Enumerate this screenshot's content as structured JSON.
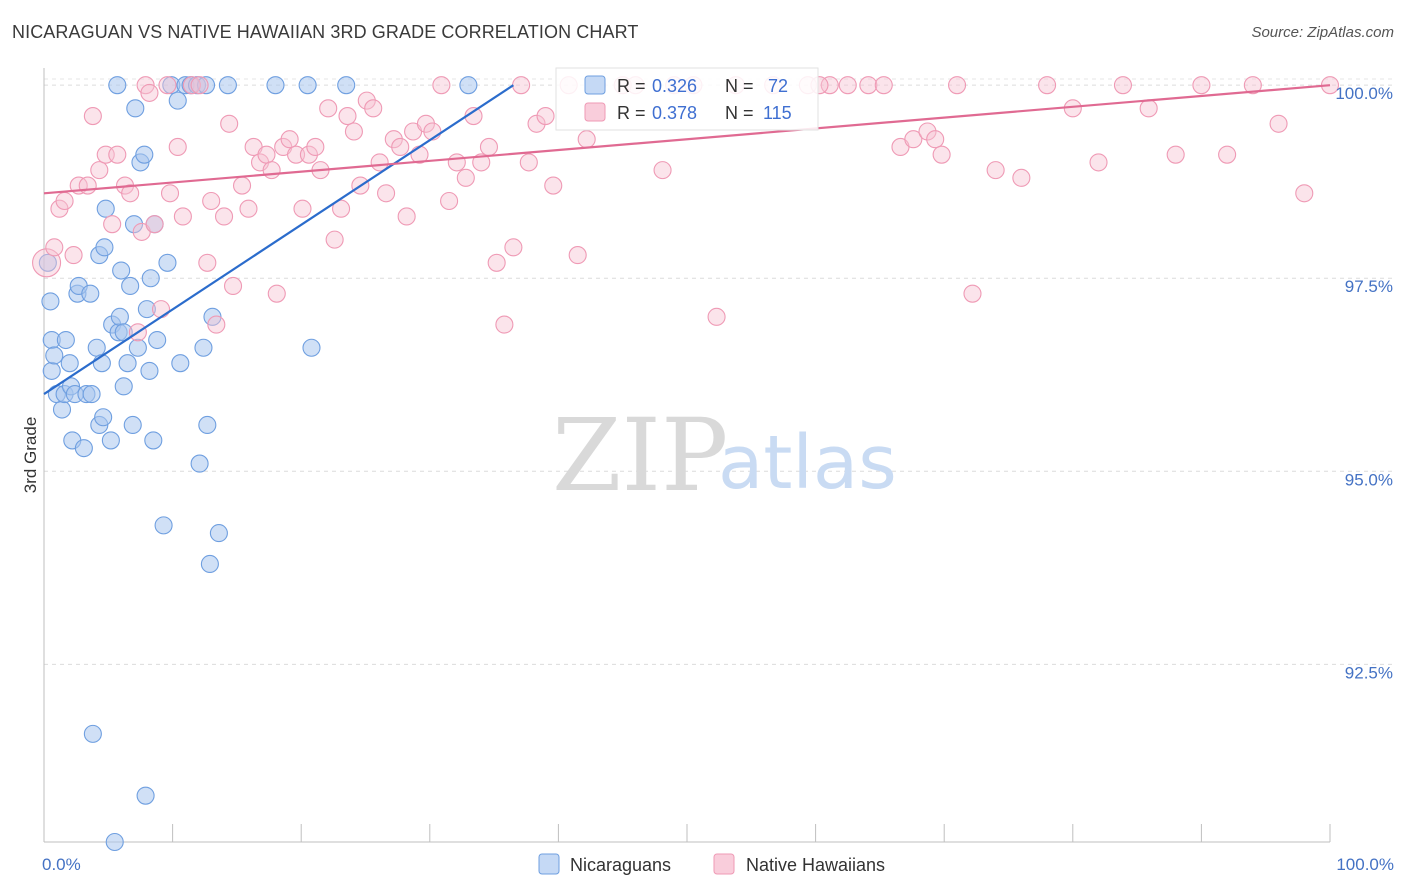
{
  "title": "NICARAGUAN VS NATIVE HAWAIIAN 3RD GRADE CORRELATION CHART",
  "source": "Source: ZipAtlas.com",
  "watermark": {
    "zip": "ZIP",
    "atlas": "atlas"
  },
  "colors": {
    "blue": "#6f9fe0",
    "blue_line": "#2b6ccc",
    "pink": "#ef9ab5",
    "pink_line": "#e06a92",
    "label": "#4472c4"
  },
  "chart_data": {
    "type": "scatter",
    "title": "NICARAGUAN VS NATIVE HAWAIIAN 3RD GRADE CORRELATION CHART",
    "xlabel": "",
    "ylabel": "3rd Grade",
    "xlim": [
      0,
      100
    ],
    "ylim": [
      90.2,
      100.3
    ],
    "x_tick_labels": [
      {
        "value": 0,
        "label": "0.0%"
      },
      {
        "value": 100,
        "label": "100.0%"
      }
    ],
    "y_ticks": [
      {
        "value": 100,
        "label": "100.0%"
      },
      {
        "value": 97.5,
        "label": "97.5%"
      },
      {
        "value": 95,
        "label": "95.0%"
      },
      {
        "value": 92.5,
        "label": "92.5%"
      }
    ],
    "legend_stats": [
      {
        "r_label": "R = ",
        "r": "0.326",
        "n_label": "N = ",
        "n": "72"
      },
      {
        "r_label": "R = ",
        "r": "0.378",
        "n_label": "N = ",
        "n": "115"
      }
    ],
    "series": [
      {
        "name": "Nicaraguans",
        "color": "#6f9fe0",
        "trend": {
          "x": [
            0,
            36.5
          ],
          "y": [
            96.0,
            100.0
          ]
        },
        "points": [
          [
            0.3,
            97.7
          ],
          [
            0.5,
            97.2
          ],
          [
            0.6,
            96.3
          ],
          [
            0.6,
            96.7
          ],
          [
            0.8,
            96.5
          ],
          [
            1.0,
            96.0
          ],
          [
            1.4,
            95.8
          ],
          [
            1.6,
            96.0
          ],
          [
            1.7,
            96.7
          ],
          [
            2.0,
            96.4
          ],
          [
            2.1,
            96.1
          ],
          [
            2.2,
            95.4
          ],
          [
            2.4,
            96.0
          ],
          [
            2.6,
            97.3
          ],
          [
            2.7,
            97.4
          ],
          [
            3.1,
            95.3
          ],
          [
            3.3,
            96.0
          ],
          [
            3.6,
            97.3
          ],
          [
            3.7,
            96.0
          ],
          [
            3.8,
            91.6
          ],
          [
            4.1,
            96.6
          ],
          [
            4.3,
            97.8
          ],
          [
            4.3,
            95.6
          ],
          [
            4.5,
            96.4
          ],
          [
            4.6,
            95.7
          ],
          [
            4.7,
            97.9
          ],
          [
            4.8,
            98.4
          ],
          [
            5.2,
            95.4
          ],
          [
            5.3,
            96.9
          ],
          [
            5.5,
            90.2
          ],
          [
            5.8,
            96.8
          ],
          [
            5.9,
            97.0
          ],
          [
            6.0,
            97.6
          ],
          [
            6.2,
            96.1
          ],
          [
            6.2,
            96.8
          ],
          [
            6.5,
            96.4
          ],
          [
            6.7,
            97.4
          ],
          [
            6.9,
            95.6
          ],
          [
            7.0,
            98.2
          ],
          [
            7.1,
            99.7
          ],
          [
            7.3,
            96.6
          ],
          [
            7.5,
            99.0
          ],
          [
            7.8,
            99.1
          ],
          [
            7.9,
            90.8
          ],
          [
            8.0,
            97.1
          ],
          [
            8.2,
            96.3
          ],
          [
            8.3,
            97.5
          ],
          [
            8.5,
            95.4
          ],
          [
            8.6,
            98.2
          ],
          [
            8.8,
            96.7
          ],
          [
            9.3,
            94.3
          ],
          [
            9.6,
            97.7
          ],
          [
            9.9,
            100.0
          ],
          [
            10.4,
            99.8
          ],
          [
            10.6,
            96.4
          ],
          [
            11.0,
            100.0
          ],
          [
            11.4,
            100.0
          ],
          [
            11.9,
            100.0
          ],
          [
            12.1,
            95.1
          ],
          [
            12.4,
            96.6
          ],
          [
            12.6,
            100.0
          ],
          [
            12.7,
            95.6
          ],
          [
            12.9,
            93.8
          ],
          [
            13.1,
            97.0
          ],
          [
            13.6,
            94.2
          ],
          [
            14.3,
            100.0
          ],
          [
            5.7,
            100.0
          ],
          [
            18.0,
            100.0
          ],
          [
            20.5,
            100.0
          ],
          [
            20.8,
            96.6
          ],
          [
            23.5,
            100.0
          ],
          [
            33.0,
            100.0
          ]
        ]
      },
      {
        "name": "Native Hawaiians",
        "color": "#ef9ab5",
        "trend": {
          "x": [
            0,
            100
          ],
          "y": [
            98.6,
            100.0
          ]
        },
        "points": [
          [
            0.2,
            97.7
          ],
          [
            0.8,
            97.9
          ],
          [
            1.2,
            98.4
          ],
          [
            1.6,
            98.5
          ],
          [
            2.3,
            97.8
          ],
          [
            2.7,
            98.7
          ],
          [
            3.4,
            98.7
          ],
          [
            3.8,
            99.6
          ],
          [
            4.3,
            98.9
          ],
          [
            4.8,
            99.1
          ],
          [
            5.3,
            98.2
          ],
          [
            5.7,
            99.1
          ],
          [
            6.3,
            98.7
          ],
          [
            6.7,
            98.6
          ],
          [
            7.3,
            96.8
          ],
          [
            7.6,
            98.1
          ],
          [
            7.9,
            100.0
          ],
          [
            8.2,
            99.9
          ],
          [
            8.6,
            98.2
          ],
          [
            9.1,
            97.1
          ],
          [
            9.6,
            100.0
          ],
          [
            9.8,
            98.6
          ],
          [
            10.4,
            99.2
          ],
          [
            10.8,
            98.3
          ],
          [
            11.5,
            100.0
          ],
          [
            12.1,
            100.0
          ],
          [
            12.7,
            97.7
          ],
          [
            13.0,
            98.5
          ],
          [
            13.4,
            96.9
          ],
          [
            14.0,
            98.3
          ],
          [
            14.4,
            99.5
          ],
          [
            14.7,
            97.4
          ],
          [
            15.4,
            98.7
          ],
          [
            15.9,
            98.4
          ],
          [
            16.3,
            99.2
          ],
          [
            16.8,
            99.0
          ],
          [
            17.3,
            99.1
          ],
          [
            17.7,
            98.9
          ],
          [
            18.1,
            97.3
          ],
          [
            18.6,
            99.2
          ],
          [
            19.1,
            99.3
          ],
          [
            19.6,
            99.1
          ],
          [
            20.1,
            98.4
          ],
          [
            20.6,
            99.1
          ],
          [
            21.1,
            99.2
          ],
          [
            21.5,
            98.9
          ],
          [
            22.1,
            99.7
          ],
          [
            22.6,
            98.0
          ],
          [
            23.1,
            98.4
          ],
          [
            23.6,
            99.6
          ],
          [
            24.1,
            99.4
          ],
          [
            24.6,
            98.7
          ],
          [
            25.1,
            99.8
          ],
          [
            25.6,
            99.7
          ],
          [
            26.1,
            99.0
          ],
          [
            26.6,
            98.6
          ],
          [
            27.2,
            99.3
          ],
          [
            27.7,
            99.2
          ],
          [
            28.2,
            98.3
          ],
          [
            28.7,
            99.4
          ],
          [
            29.2,
            99.1
          ],
          [
            29.7,
            99.5
          ],
          [
            30.2,
            99.4
          ],
          [
            30.9,
            100.0
          ],
          [
            31.5,
            98.5
          ],
          [
            32.1,
            99.0
          ],
          [
            32.8,
            98.8
          ],
          [
            33.4,
            99.6
          ],
          [
            34.0,
            99.0
          ],
          [
            34.6,
            99.2
          ],
          [
            35.2,
            97.7
          ],
          [
            35.8,
            96.9
          ],
          [
            36.5,
            97.9
          ],
          [
            37.1,
            100.0
          ],
          [
            37.7,
            99.0
          ],
          [
            38.3,
            99.5
          ],
          [
            39.0,
            99.6
          ],
          [
            39.6,
            98.7
          ],
          [
            40.8,
            100.0
          ],
          [
            41.5,
            97.8
          ],
          [
            42.2,
            99.3
          ],
          [
            43.0,
            100.0
          ],
          [
            45.0,
            100.0
          ],
          [
            48.1,
            98.9
          ],
          [
            49.0,
            100.0
          ],
          [
            46.0,
            100.0
          ],
          [
            50.5,
            100.0
          ],
          [
            52.3,
            97.0
          ],
          [
            53.8,
            100.0
          ],
          [
            56.7,
            100.0
          ],
          [
            59.4,
            100.0
          ],
          [
            61.1,
            100.0
          ],
          [
            60.3,
            100.0
          ],
          [
            62.5,
            100.0
          ],
          [
            64.1,
            100.0
          ],
          [
            65.3,
            100.0
          ],
          [
            66.6,
            99.2
          ],
          [
            67.6,
            99.3
          ],
          [
            68.7,
            99.4
          ],
          [
            69.3,
            99.3
          ],
          [
            69.8,
            99.1
          ],
          [
            71.0,
            100.0
          ],
          [
            72.2,
            97.3
          ],
          [
            74.0,
            98.9
          ],
          [
            76.0,
            98.8
          ],
          [
            78.0,
            100.0
          ],
          [
            80.0,
            99.7
          ],
          [
            82.0,
            99.0
          ],
          [
            83.9,
            100.0
          ],
          [
            85.9,
            99.7
          ],
          [
            88.0,
            99.1
          ],
          [
            90.0,
            100.0
          ],
          [
            92.0,
            99.1
          ],
          [
            94.0,
            100.0
          ],
          [
            96.0,
            99.5
          ],
          [
            98.0,
            98.6
          ],
          [
            100.0,
            100.0
          ]
        ]
      }
    ]
  }
}
